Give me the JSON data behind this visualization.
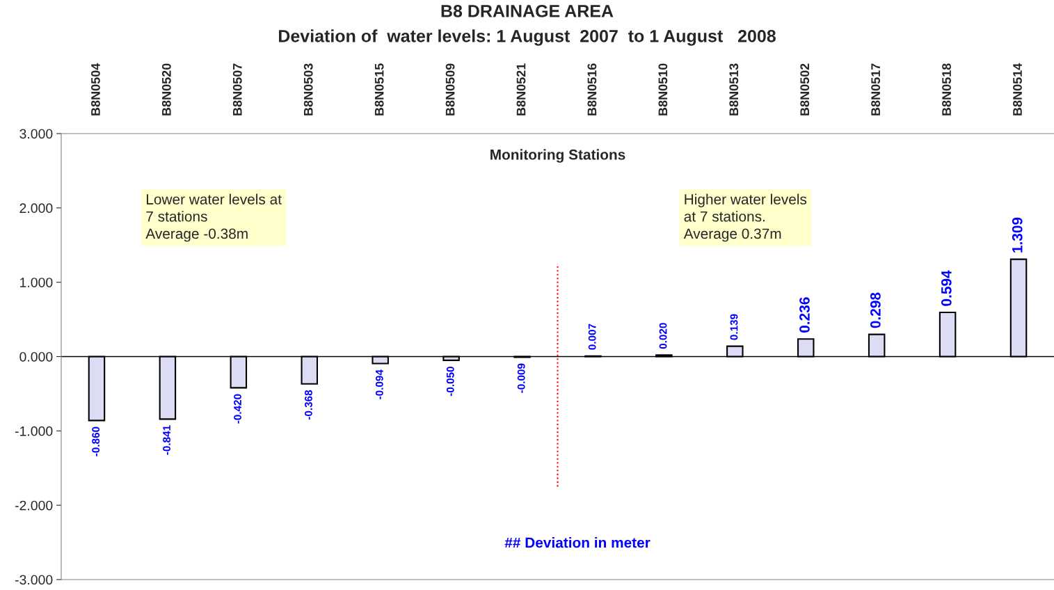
{
  "chart_data": {
    "type": "bar",
    "title": "B8 DRAINAGE AREA",
    "subtitle": "Deviation of  water levels: 1 August  2007  to 1 August   2008",
    "xlabel": "Monitoring Stations",
    "ylabel": "## Deviation in meter",
    "categories": [
      "B8N0504",
      "B8N0520",
      "B8N0507",
      "B8N0503",
      "B8N0515",
      "B8N0509",
      "B8N0521",
      "B8N0516",
      "B8N0510",
      "B8N0513",
      "B8N0502",
      "B8N0517",
      "B8N0518",
      "B8N0514"
    ],
    "values": [
      -0.86,
      -0.841,
      -0.42,
      -0.368,
      -0.094,
      -0.05,
      -0.009,
      0.007,
      0.02,
      0.139,
      0.236,
      0.298,
      0.594,
      1.309
    ],
    "value_labels": [
      "-0.860",
      "-0.841",
      "-0.420",
      "-0.368",
      "-0.094",
      "-0.050",
      "-0.009",
      "0.007",
      "0.020",
      "0.139",
      "0.236",
      "0.298",
      "0.594",
      "1.309"
    ],
    "color": "#dcdcf5",
    "ylim": [
      -3,
      3
    ],
    "yticks": [
      {
        "value": -3,
        "label": "-3.000"
      },
      {
        "value": -2,
        "label": "-2.000"
      },
      {
        "value": -1,
        "label": "-1.000"
      },
      {
        "value": 0,
        "label": "0.000"
      },
      {
        "value": 1,
        "label": "1.000"
      },
      {
        "value": 2,
        "label": "2.000"
      },
      {
        "value": 3,
        "label": "3.000"
      }
    ],
    "annotations": [
      "Lower water levels at\n7 stations\nAverage -0.38m",
      "Higher water levels\nat 7 stations.\nAverage 0.37m"
    ]
  }
}
